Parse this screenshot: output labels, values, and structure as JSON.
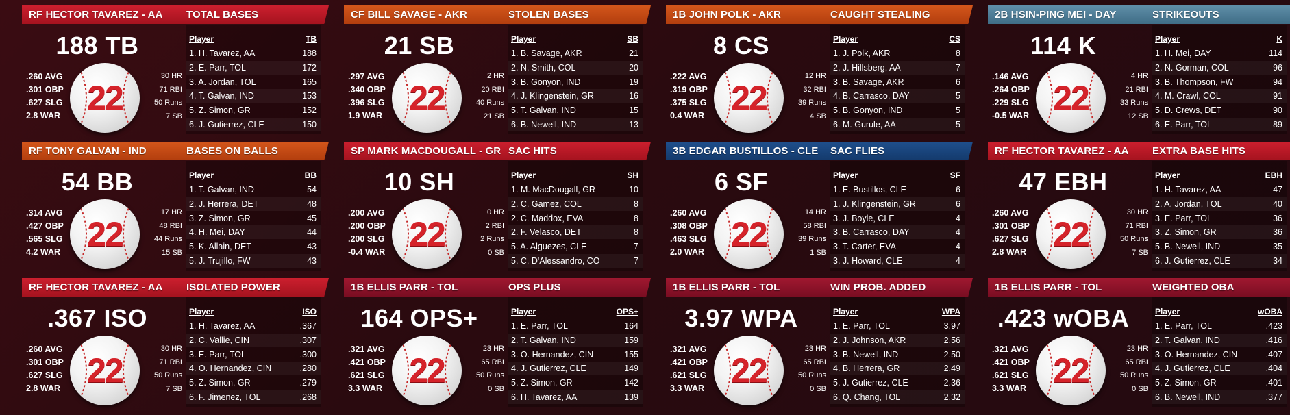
{
  "cards": [
    {
      "player": "RF HECTOR TAVAREZ - AA",
      "title": "TOTAL BASES",
      "theme": "red",
      "big": "188 TB",
      "left": [
        ".260 AVG",
        ".301 OBP",
        ".627 SLG",
        "2.8 WAR"
      ],
      "right": [
        "30 HR",
        "71 RBI",
        "50 Runs",
        "7 SB"
      ],
      "number": "22",
      "col_player": "Player",
      "col_stat": "TB",
      "rows": [
        {
          "name": "1. H. Tavarez, AA",
          "value": "188"
        },
        {
          "name": "2. E. Parr, TOL",
          "value": "172"
        },
        {
          "name": "3. A. Jordan, TOL",
          "value": "165"
        },
        {
          "name": "4. T. Galvan, IND",
          "value": "153"
        },
        {
          "name": "5. Z. Simon, GR",
          "value": "152"
        },
        {
          "name": "6. J. Gutierrez, CLE",
          "value": "150"
        }
      ]
    },
    {
      "player": "CF BILL SAVAGE - AKR",
      "title": "STOLEN BASES",
      "theme": "orange",
      "big": "21 SB",
      "left": [
        ".297 AVG",
        ".340 OBP",
        ".396 SLG",
        "1.9 WAR"
      ],
      "right": [
        "2 HR",
        "20 RBI",
        "40 Runs",
        "21 SB"
      ],
      "number": "22",
      "col_player": "Player",
      "col_stat": "SB",
      "rows": [
        {
          "name": "1. B. Savage, AKR",
          "value": "21"
        },
        {
          "name": "2. N. Smith, COL",
          "value": "20"
        },
        {
          "name": "3. B. Gonyon, IND",
          "value": "19"
        },
        {
          "name": "4. J. Klingenstein, GR",
          "value": "16"
        },
        {
          "name": "5. T. Galvan, IND",
          "value": "15"
        },
        {
          "name": "6. B. Newell, IND",
          "value": "13"
        }
      ]
    },
    {
      "player": "1B JOHN POLK - AKR",
      "title": "CAUGHT STEALING",
      "theme": "orange",
      "big": "8 CS",
      "left": [
        ".222 AVG",
        ".319 OBP",
        ".375 SLG",
        "0.4 WAR"
      ],
      "right": [
        "12 HR",
        "32 RBI",
        "39 Runs",
        "4 SB"
      ],
      "number": "22",
      "col_player": "Player",
      "col_stat": "CS",
      "rows": [
        {
          "name": "1. J. Polk, AKR",
          "value": "8"
        },
        {
          "name": "2. J. Hillsberg, AA",
          "value": "7"
        },
        {
          "name": "3. B. Savage, AKR",
          "value": "6"
        },
        {
          "name": "4. B. Carrasco, DAY",
          "value": "5"
        },
        {
          "name": "5. B. Gonyon, IND",
          "value": "5"
        },
        {
          "name": "6. M. Gurule, AA",
          "value": "5"
        }
      ]
    },
    {
      "player": "2B HSIN-PING MEI - DAY",
      "title": "STRIKEOUTS",
      "theme": "steel",
      "big": "114 K",
      "left": [
        ".146 AVG",
        ".264 OBP",
        ".229 SLG",
        "-0.5 WAR"
      ],
      "right": [
        "4 HR",
        "21 RBI",
        "33 Runs",
        "12 SB"
      ],
      "number": "22",
      "col_player": "Player",
      "col_stat": "K",
      "rows": [
        {
          "name": "1. H. Mei, DAY",
          "value": "114"
        },
        {
          "name": "2. N. Gorman, COL",
          "value": "96"
        },
        {
          "name": "3. B. Thompson, FW",
          "value": "94"
        },
        {
          "name": "4. M. Crawl, COL",
          "value": "91"
        },
        {
          "name": "5. D. Crews, DET",
          "value": "90"
        },
        {
          "name": "6. E. Parr, TOL",
          "value": "89"
        }
      ]
    },
    {
      "player": "RF TONY GALVAN - IND",
      "title": "BASES ON BALLS",
      "theme": "orange",
      "big": "54 BB",
      "left": [
        ".314 AVG",
        ".427 OBP",
        ".565 SLG",
        "4.2 WAR"
      ],
      "right": [
        "17 HR",
        "48 RBI",
        "44 Runs",
        "15 SB"
      ],
      "number": "22",
      "col_player": "Player",
      "col_stat": "BB",
      "rows": [
        {
          "name": "1. T. Galvan, IND",
          "value": "54"
        },
        {
          "name": "2. J. Herrera, DET",
          "value": "48"
        },
        {
          "name": "3. Z. Simon, GR",
          "value": "45"
        },
        {
          "name": "4. H. Mei, DAY",
          "value": "44"
        },
        {
          "name": "5. K. Allain, DET",
          "value": "43"
        },
        {
          "name": "5. J. Trujillo, FW",
          "value": "43"
        }
      ]
    },
    {
      "player": "SP MARK MACDOUGALL - GR",
      "title": "SAC HITS",
      "theme": "red",
      "big": "10 SH",
      "left": [
        ".200 AVG",
        ".200 OBP",
        ".200 SLG",
        "-0.4 WAR"
      ],
      "right": [
        "0 HR",
        "2 RBI",
        "2 Runs",
        "0 SB"
      ],
      "number": "22",
      "col_player": "Player",
      "col_stat": "SH",
      "rows": [
        {
          "name": "1. M. MacDougall, GR",
          "value": "10"
        },
        {
          "name": "2. C. Gamez, COL",
          "value": "8"
        },
        {
          "name": "2. C. Maddox, EVA",
          "value": "8"
        },
        {
          "name": "2. F. Velasco, DET",
          "value": "8"
        },
        {
          "name": "5. A. Alguezes, CLE",
          "value": "7"
        },
        {
          "name": "5. C. D'Alessandro, CO",
          "value": "7"
        }
      ]
    },
    {
      "player": "3B EDGAR BUSTILLOS - CLE",
      "title": "SAC FLIES",
      "theme": "navy",
      "big": "6 SF",
      "left": [
        ".260 AVG",
        ".308 OBP",
        ".463 SLG",
        "2.0 WAR"
      ],
      "right": [
        "14 HR",
        "58 RBI",
        "39 Runs",
        "1 SB"
      ],
      "number": "22",
      "col_player": "Player",
      "col_stat": "SF",
      "rows": [
        {
          "name": "1. E. Bustillos, CLE",
          "value": "6"
        },
        {
          "name": "1. J. Klingenstein, GR",
          "value": "6"
        },
        {
          "name": "3. J. Boyle, CLE",
          "value": "4"
        },
        {
          "name": "3. B. Carrasco, DAY",
          "value": "4"
        },
        {
          "name": "3. T. Carter, EVA",
          "value": "4"
        },
        {
          "name": "3. J. Howard, CLE",
          "value": "4"
        }
      ]
    },
    {
      "player": "RF HECTOR TAVAREZ - AA",
      "title": "EXTRA BASE HITS",
      "theme": "red",
      "big": "47 EBH",
      "left": [
        ".260 AVG",
        ".301 OBP",
        ".627 SLG",
        "2.8 WAR"
      ],
      "right": [
        "30 HR",
        "71 RBI",
        "50 Runs",
        "7 SB"
      ],
      "number": "22",
      "col_player": "Player",
      "col_stat": "EBH",
      "rows": [
        {
          "name": "1. H. Tavarez, AA",
          "value": "47"
        },
        {
          "name": "2. A. Jordan, TOL",
          "value": "40"
        },
        {
          "name": "3. E. Parr, TOL",
          "value": "36"
        },
        {
          "name": "3. Z. Simon, GR",
          "value": "36"
        },
        {
          "name": "5. B. Newell, IND",
          "value": "35"
        },
        {
          "name": "6. J. Gutierrez, CLE",
          "value": "34"
        }
      ]
    },
    {
      "player": "RF HECTOR TAVAREZ - AA",
      "title": "ISOLATED POWER",
      "theme": "red",
      "big": ".367 ISO",
      "left": [
        ".260 AVG",
        ".301 OBP",
        ".627 SLG",
        "2.8 WAR"
      ],
      "right": [
        "30 HR",
        "71 RBI",
        "50 Runs",
        "7 SB"
      ],
      "number": "22",
      "col_player": "Player",
      "col_stat": "ISO",
      "rows": [
        {
          "name": "1. H. Tavarez, AA",
          "value": ".367"
        },
        {
          "name": "2. C. Vallie, CIN",
          "value": ".307"
        },
        {
          "name": "3. E. Parr, TOL",
          "value": ".300"
        },
        {
          "name": "4. O. Hernandez, CIN",
          "value": ".280"
        },
        {
          "name": "5. Z. Simon, GR",
          "value": ".279"
        },
        {
          "name": "6. F. Jimenez, TOL",
          "value": ".268"
        }
      ]
    },
    {
      "player": "1B ELLIS PARR - TOL",
      "title": "OPS PLUS",
      "theme": "maroon",
      "big": "164 OPS+",
      "left": [
        ".321 AVG",
        ".421 OBP",
        ".621 SLG",
        "3.3 WAR"
      ],
      "right": [
        "23 HR",
        "65 RBI",
        "50 Runs",
        "0 SB"
      ],
      "number": "22",
      "col_player": "Player",
      "col_stat": "OPS+",
      "rows": [
        {
          "name": "1. E. Parr, TOL",
          "value": "164"
        },
        {
          "name": "2. T. Galvan, IND",
          "value": "159"
        },
        {
          "name": "3. O. Hernandez, CIN",
          "value": "155"
        },
        {
          "name": "4. J. Gutierrez, CLE",
          "value": "149"
        },
        {
          "name": "5. Z. Simon, GR",
          "value": "142"
        },
        {
          "name": "6. H. Tavarez, AA",
          "value": "139"
        }
      ]
    },
    {
      "player": "1B ELLIS PARR - TOL",
      "title": "WIN PROB. ADDED",
      "theme": "maroon",
      "big": "3.97 WPA",
      "left": [
        ".321 AVG",
        ".421 OBP",
        ".621 SLG",
        "3.3 WAR"
      ],
      "right": [
        "23 HR",
        "65 RBI",
        "50 Runs",
        "0 SB"
      ],
      "number": "22",
      "col_player": "Player",
      "col_stat": "WPA",
      "rows": [
        {
          "name": "1. E. Parr, TOL",
          "value": "3.97"
        },
        {
          "name": "2. J. Johnson, AKR",
          "value": "2.56"
        },
        {
          "name": "3. B. Newell, IND",
          "value": "2.50"
        },
        {
          "name": "4. B. Herrera, GR",
          "value": "2.49"
        },
        {
          "name": "5. J. Gutierrez, CLE",
          "value": "2.36"
        },
        {
          "name": "6. Q. Chang, TOL",
          "value": "2.32"
        }
      ]
    },
    {
      "player": "1B ELLIS PARR - TOL",
      "title": "WEIGHTED OBA",
      "theme": "maroon",
      "big": ".423 wOBA",
      "left": [
        ".321 AVG",
        ".421 OBP",
        ".621 SLG",
        "3.3 WAR"
      ],
      "right": [
        "23 HR",
        "65 RBI",
        "50 Runs",
        "0 SB"
      ],
      "number": "22",
      "col_player": "Player",
      "col_stat": "wOBA",
      "rows": [
        {
          "name": "1. E. Parr, TOL",
          "value": ".423"
        },
        {
          "name": "2. T. Galvan, IND",
          "value": ".416"
        },
        {
          "name": "3. O. Hernandez, CIN",
          "value": ".407"
        },
        {
          "name": "4. J. Gutierrez, CLE",
          "value": ".404"
        },
        {
          "name": "5. Z. Simon, GR",
          "value": ".401"
        },
        {
          "name": "6. B. Newell, IND",
          "value": ".377"
        }
      ]
    }
  ]
}
